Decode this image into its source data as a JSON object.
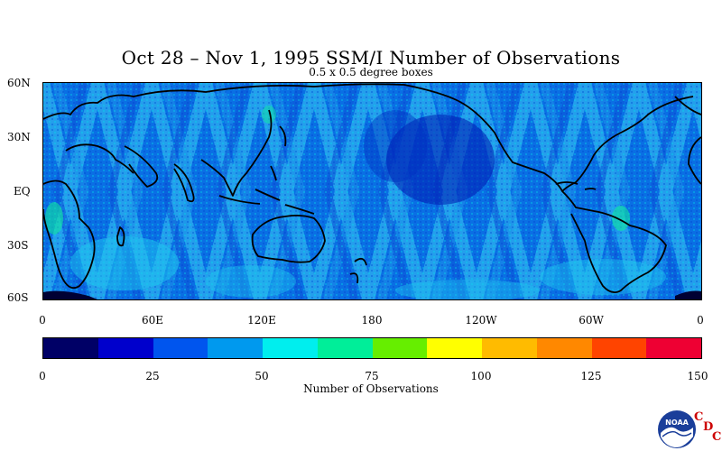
{
  "title": "Oct 28 – Nov 1, 1995 SSM/I Number of Observations",
  "subtitle": "0.5 x 0.5 degree boxes",
  "map": {
    "lat_labels": [
      "60N",
      "30N",
      "EQ",
      "30S",
      "60S"
    ],
    "lon_labels": [
      "0",
      "60E",
      "120E",
      "180",
      "120W",
      "60W",
      "0"
    ]
  },
  "colorbar": {
    "title": "Number of Observations",
    "tick_labels": [
      "0",
      "25",
      "50",
      "75",
      "100",
      "125",
      "150"
    ],
    "colors": [
      "#000066",
      "#0000cc",
      "#0055ee",
      "#0099ee",
      "#00eeee",
      "#00ee99",
      "#66ee00",
      "#ffff00",
      "#ffbb00",
      "#ff8800",
      "#ff4400",
      "#ee0033"
    ]
  },
  "credits": {
    "logo_text": "NOAA",
    "cdc_letters": [
      "C",
      "D",
      "C"
    ]
  }
}
